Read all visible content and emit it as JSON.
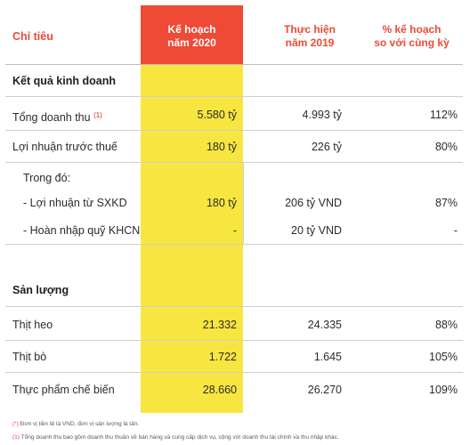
{
  "header": {
    "label": "Chỉ tiêu",
    "plan": "Kế hoạch\nnăm 2020",
    "actual": "Thực hiện\nnăm 2019",
    "pct": "% kế hoạch\nso với cùng kỳ"
  },
  "sections": {
    "business": "Kết quả kinh doanh",
    "output": "Sản lượng"
  },
  "rows": {
    "revenue": {
      "label": "Tổng doanh thu",
      "note": "(1)",
      "plan": "5.580 tỷ",
      "actual": "4.993 tỷ",
      "pct": "112%"
    },
    "profit": {
      "label": "Lợi nhuận trước thuế",
      "plan": "180 tỷ",
      "actual": "226 tỷ",
      "pct": "80%"
    },
    "of_which": {
      "label": "Trong đó:"
    },
    "profit_sxkd": {
      "label": "- Lợi nhuận từ SXKD",
      "plan": "180 tỷ",
      "actual": "206 tỷ VND",
      "pct": "87%"
    },
    "khcn": {
      "label": "- Hoàn nhập quỹ KHCN",
      "plan": "-",
      "actual": "20 tỷ VND",
      "pct": "-"
    },
    "pork": {
      "label": "Thịt heo",
      "plan": "21.332",
      "actual": "24.335",
      "pct": "88%"
    },
    "beef": {
      "label": "Thịt bò",
      "plan": "1.722",
      "actual": "1.645",
      "pct": "105%"
    },
    "processed": {
      "label": "Thực phẩm chế biến",
      "plan": "28.660",
      "actual": "26.270",
      "pct": "109%"
    }
  },
  "footnotes": {
    "units_mark": "(*)",
    "units": "Đơn vị tiền tệ là VND, đơn vị sản lượng là tấn.",
    "revenue_mark": "(1)",
    "revenue": "Tổng doanh thu bao gồm doanh thu thuần về bán hàng và cung cấp dịch vụ, cộng với doanh thu tài chính và thu nhập khác."
  },
  "colors": {
    "accent_red": "#ee4a36",
    "highlight_yellow": "#f7e640"
  }
}
